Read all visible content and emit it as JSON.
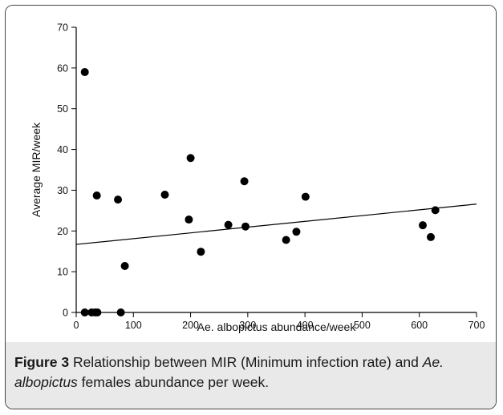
{
  "chart_data": {
    "type": "scatter",
    "title": "",
    "xlabel": "Ae. albopictus abundance/week",
    "ylabel": "Average MIR/week",
    "xlim": [
      0,
      700
    ],
    "ylim": [
      0,
      70
    ],
    "xticks": [
      0,
      100,
      200,
      300,
      400,
      500,
      600,
      700
    ],
    "yticks": [
      0,
      10,
      20,
      30,
      40,
      50,
      60,
      70
    ],
    "grid": false,
    "points": [
      {
        "x": 15,
        "y": 59
      },
      {
        "x": 15,
        "y": 0
      },
      {
        "x": 27,
        "y": 0
      },
      {
        "x": 33,
        "y": 0
      },
      {
        "x": 37,
        "y": 0
      },
      {
        "x": 36,
        "y": 28.7
      },
      {
        "x": 73,
        "y": 27.7
      },
      {
        "x": 78,
        "y": 0
      },
      {
        "x": 85,
        "y": 11.4
      },
      {
        "x": 155,
        "y": 28.9
      },
      {
        "x": 197,
        "y": 22.8
      },
      {
        "x": 200,
        "y": 37.9
      },
      {
        "x": 218,
        "y": 14.9
      },
      {
        "x": 266,
        "y": 21.5
      },
      {
        "x": 294,
        "y": 32.2
      },
      {
        "x": 296,
        "y": 21.1
      },
      {
        "x": 367,
        "y": 17.8
      },
      {
        "x": 385,
        "y": 19.8
      },
      {
        "x": 401,
        "y": 28.4
      },
      {
        "x": 606,
        "y": 21.4
      },
      {
        "x": 620,
        "y": 18.5
      },
      {
        "x": 628,
        "y": 25.1
      }
    ],
    "trendline": {
      "x": [
        0,
        700
      ],
      "y": [
        16.7,
        26.6
      ]
    }
  },
  "caption": {
    "figure_label": "Figure 3",
    "text_1": " Relationship between MIR (Minimum infection rate) and ",
    "species": "Ae. albopictus",
    "text_2": " females abundance per week."
  },
  "colors": {
    "points": "#000000",
    "axis": "#000000",
    "caption_background": "#e9e9e9",
    "frame_border": "#444444"
  }
}
